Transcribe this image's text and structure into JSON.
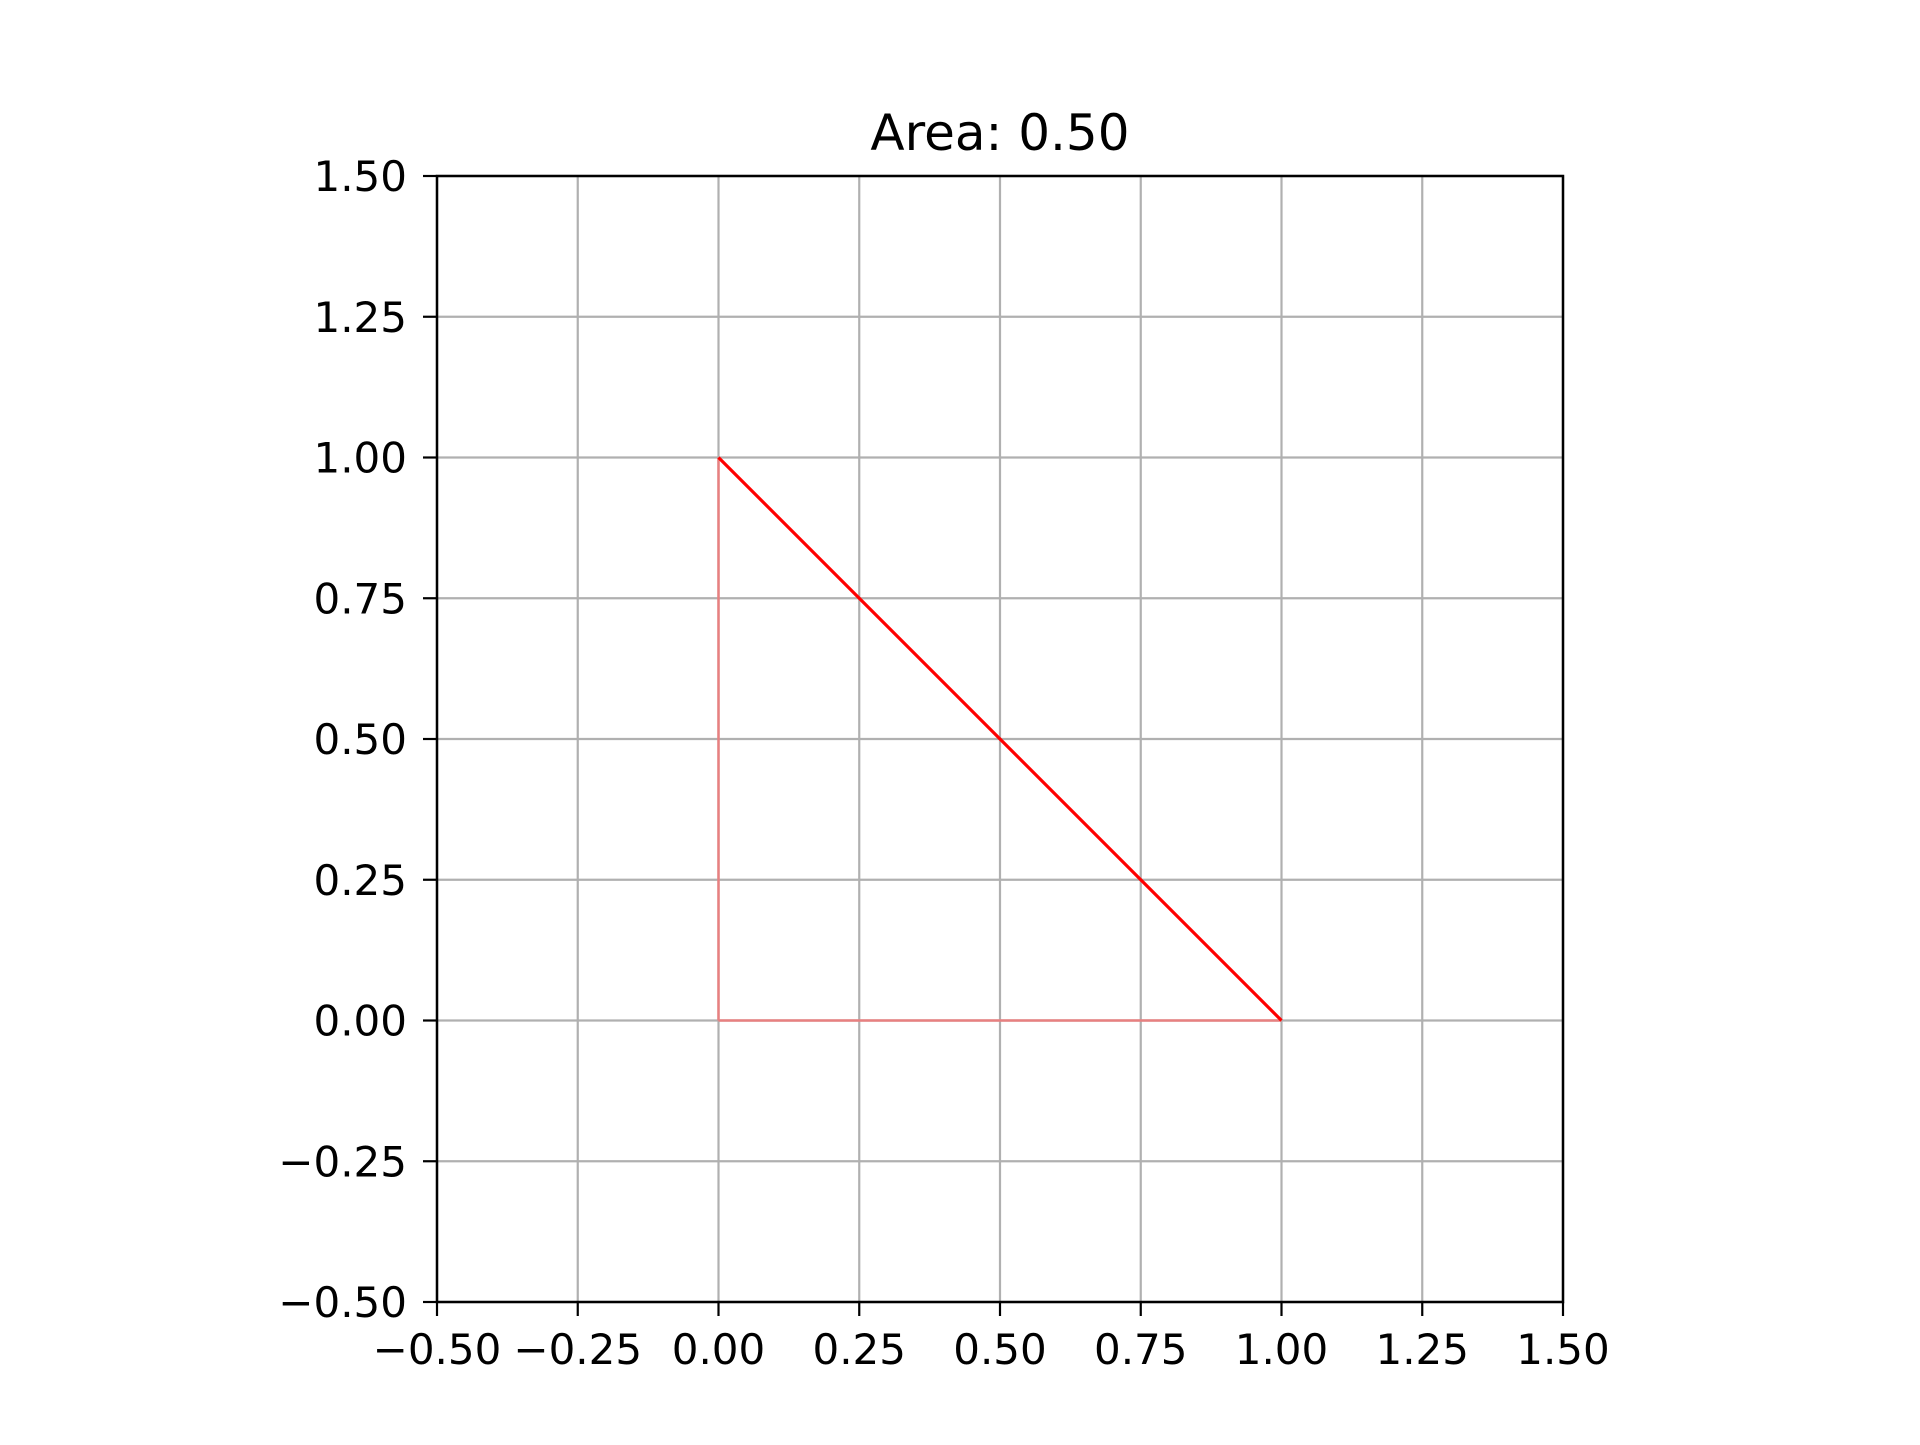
{
  "chart_data": {
    "type": "line",
    "title": "Area: 0.50",
    "xlabel": "",
    "ylabel": "",
    "xlim": [
      -0.5,
      1.5
    ],
    "ylim": [
      -0.5,
      1.5
    ],
    "xticks": [
      -0.5,
      -0.25,
      0.0,
      0.25,
      0.5,
      0.75,
      1.0,
      1.25,
      1.5
    ],
    "yticks": [
      -0.5,
      -0.25,
      0.0,
      0.25,
      0.5,
      0.75,
      1.0,
      1.25,
      1.5
    ],
    "xtick_labels": [
      "−0.50",
      "−0.25",
      "0.00",
      "0.25",
      "0.50",
      "0.75",
      "1.00",
      "1.25",
      "1.50"
    ],
    "ytick_labels": [
      "−0.50",
      "−0.25",
      "0.00",
      "0.25",
      "0.50",
      "0.75",
      "1.00",
      "1.25",
      "1.50"
    ],
    "grid": true,
    "aspect": "equal",
    "series": [
      {
        "kind": "polygon",
        "points": [
          [
            0,
            0
          ],
          [
            1,
            0
          ],
          [
            0,
            1
          ]
        ],
        "stroke_color": "#ff0000",
        "base_edges_color": "#e88080"
      }
    ],
    "colors": {
      "grid": "#b0b0b0",
      "axes": "#000000",
      "hypotenuse": "#ff0000"
    }
  }
}
